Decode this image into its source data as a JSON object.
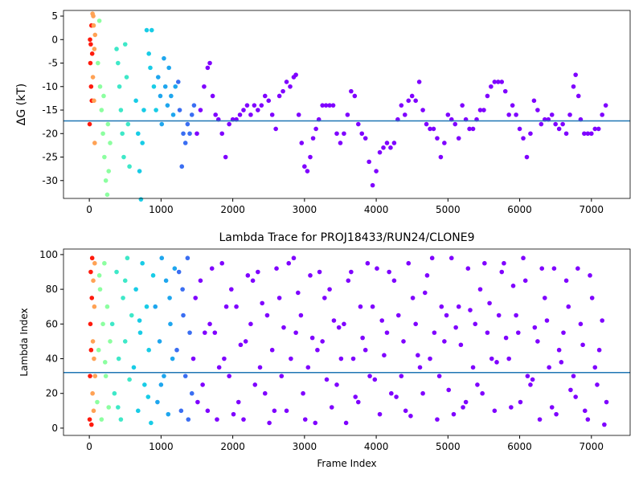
{
  "chart_data": [
    {
      "type": "scatter",
      "ylabel": "ΔG (kT)",
      "xlim": [
        -360,
        7540
      ],
      "ylim": [
        -33.8,
        6.2
      ],
      "xticks": [
        0,
        1000,
        2000,
        3000,
        4000,
        5000,
        6000,
        7000
      ],
      "yticks": [
        -30,
        -25,
        -20,
        -15,
        -10,
        -5,
        0,
        5
      ],
      "hline": {
        "value": -17.3,
        "color": "#1f77b4"
      },
      "series": [
        {
          "color": "#ff1a0d",
          "x": [
            10,
            20,
            30,
            15,
            25,
            35,
            5,
            40
          ],
          "values": [
            0,
            -1,
            3,
            -5,
            -10,
            -13,
            -18,
            -3
          ]
        },
        {
          "color": "#ffa255",
          "x": [
            45,
            55,
            60,
            70,
            50,
            65,
            75,
            80
          ],
          "values": [
            5.5,
            5,
            3,
            -2,
            -8,
            -13,
            -22,
            1
          ]
        },
        {
          "color": "#8cffa0",
          "x": [
            120,
            150,
            170,
            190,
            210,
            230,
            250,
            270,
            290,
            140,
            200,
            260
          ],
          "values": [
            -5,
            -10,
            -15,
            -20,
            -25,
            -30,
            -33,
            -28,
            -22,
            4,
            -12,
            -18
          ]
        },
        {
          "color": "#3ee8c8",
          "x": [
            380,
            400,
            420,
            440,
            460,
            480,
            500,
            520,
            540,
            560
          ],
          "values": [
            -2,
            -5,
            -10,
            -15,
            -20,
            -25,
            -1,
            -8,
            -18,
            -27
          ]
        },
        {
          "color": "#18cce6",
          "x": [
            650,
            680,
            700,
            720,
            740,
            760,
            800,
            830,
            850,
            870,
            900,
            930
          ],
          "values": [
            -13,
            -20,
            -28,
            -34,
            -22,
            -15,
            2,
            -3,
            -6,
            2,
            -10,
            -15
          ]
        },
        {
          "color": "#1ea6ee",
          "x": [
            960,
            990,
            1010,
            1040,
            1060,
            1090,
            1110,
            1140,
            1170,
            1200
          ],
          "values": [
            -8,
            -12,
            -18,
            -4,
            -10,
            -14,
            -6,
            -12,
            -16,
            -10
          ]
        },
        {
          "color": "#3a6ef2",
          "x": [
            1240,
            1260,
            1290,
            1310,
            1340,
            1370,
            1400,
            1430,
            1460
          ],
          "values": [
            -9,
            -15,
            -27,
            -20,
            -22,
            -18,
            -20,
            -16,
            -14
          ]
        },
        {
          "color": "#7f00ff",
          "x": [
            1500,
            1550,
            1600,
            1650,
            1680,
            1720,
            1760,
            1800,
            1850,
            1900,
            1950,
            2000,
            2050,
            2100,
            2150,
            2200,
            2250,
            2300,
            2350,
            2400,
            2450,
            2500,
            2550,
            2600,
            2650,
            2700,
            2750,
            2800,
            2850,
            2880,
            2920,
            2960,
            3000,
            3040,
            3080,
            3120,
            3160,
            3200,
            3250,
            3300,
            3350,
            3400,
            3450,
            3500,
            3550,
            3600,
            3650,
            3700,
            3750,
            3800,
            3850,
            3900,
            3950,
            4000,
            4050,
            4100,
            4150,
            4200,
            4250,
            4300,
            4350,
            4400,
            4450,
            4500,
            4550,
            4600,
            4650,
            4700,
            4750,
            4800,
            4850,
            4900,
            4950,
            5000,
            5050,
            5100,
            5150,
            5200,
            5250,
            5300,
            5350,
            5400,
            5450,
            5500,
            5550,
            5600,
            5650,
            5700,
            5750,
            5800,
            5850,
            5900,
            5950,
            6000,
            6050,
            6100,
            6150,
            6200,
            6250,
            6300,
            6350,
            6400,
            6450,
            6500,
            6550,
            6600,
            6650,
            6700,
            6750,
            6780,
            6820,
            6850,
            6900,
            6950,
            7000,
            7050,
            7100,
            7150,
            7200
          ],
          "values": [
            -20,
            -15,
            -10,
            -6,
            -5,
            -12,
            -16,
            -17,
            -20,
            -25,
            -18,
            -17,
            -17,
            -16,
            -15,
            -14,
            -16,
            -14,
            -15,
            -14,
            -12,
            -13,
            -16,
            -19,
            -12,
            -11,
            -9,
            -10,
            -8,
            -7.5,
            -16,
            -22,
            -27,
            -28,
            -25,
            -21,
            -19,
            -17,
            -14,
            -14,
            -14,
            -14,
            -20,
            -22,
            -20,
            -16,
            -11,
            -12,
            -18,
            -20,
            -21,
            -26,
            -31,
            -28,
            -24,
            -23,
            -22,
            -23,
            -22,
            -17,
            -14,
            -16,
            -13,
            -12,
            -13,
            -9,
            -15,
            -18,
            -19,
            -19,
            -21,
            -25,
            -22,
            -16,
            -17,
            -18,
            -21,
            -14,
            -17,
            -19,
            -19,
            -17,
            -15,
            -15,
            -12,
            -10,
            -9,
            -9,
            -9,
            -11,
            -16,
            -14,
            -16,
            -19,
            -21,
            -25,
            -20,
            -13,
            -15,
            -18,
            -17,
            -17,
            -16,
            -18,
            -19,
            -18,
            -20,
            -16,
            -10,
            -7.5,
            -12,
            -17,
            -20,
            -20,
            -20,
            -19,
            -19,
            -16,
            -14
          ]
        }
      ]
    },
    {
      "type": "scatter",
      "title": "Lambda Trace for PROJ18433/RUN24/CLONE9",
      "xlabel": "Frame Index",
      "ylabel": "Lambda Index",
      "xlim": [
        -360,
        7540
      ],
      "ylim": [
        -4.2,
        103.2
      ],
      "xticks": [
        0,
        1000,
        2000,
        3000,
        4000,
        5000,
        6000,
        7000
      ],
      "yticks": [
        0,
        20,
        40,
        60,
        80,
        100
      ],
      "hline": {
        "value": 32,
        "color": "#1f77b4"
      },
      "series": [
        {
          "color": "#ff1a0d",
          "x": [
            5,
            10,
            15,
            20,
            25,
            30,
            35,
            40
          ],
          "values": [
            5,
            30,
            60,
            90,
            45,
            2,
            75,
            98
          ]
        },
        {
          "color": "#ffa255",
          "x": [
            45,
            50,
            55,
            60,
            65,
            70,
            75,
            80
          ],
          "values": [
            20,
            50,
            85,
            10,
            40,
            70,
            95,
            30
          ]
        },
        {
          "color": "#8cffa0",
          "x": [
            110,
            130,
            150,
            170,
            190,
            210,
            230,
            250,
            270,
            290,
            140,
            220
          ],
          "values": [
            15,
            45,
            80,
            5,
            60,
            95,
            30,
            70,
            12,
            50,
            88,
            38
          ]
        },
        {
          "color": "#3ee8c8",
          "x": [
            320,
            350,
            380,
            410,
            440,
            470,
            500,
            530,
            560,
            590,
            400,
            500
          ],
          "values": [
            60,
            20,
            90,
            40,
            5,
            75,
            50,
            98,
            28,
            65,
            12,
            85
          ]
        },
        {
          "color": "#18cce6",
          "x": [
            620,
            650,
            680,
            710,
            740,
            770,
            800,
            830,
            860,
            890,
            700,
            820
          ],
          "values": [
            35,
            80,
            10,
            55,
            95,
            25,
            70,
            45,
            3,
            88,
            62,
            18
          ]
        },
        {
          "color": "#1ea6ee",
          "x": [
            920,
            950,
            980,
            1010,
            1040,
            1070,
            1100,
            1130,
            1160,
            1190,
            1000,
            1120
          ],
          "values": [
            70,
            15,
            50,
            98,
            30,
            85,
            8,
            60,
            40,
            92,
            25,
            75
          ]
        },
        {
          "color": "#3a6ef2",
          "x": [
            1220,
            1250,
            1280,
            1310,
            1340,
            1370,
            1400,
            1430,
            1300,
            1380
          ],
          "values": [
            45,
            90,
            10,
            65,
            30,
            98,
            55,
            20,
            80,
            5
          ]
        },
        {
          "color": "#7f00ff",
          "x": [
            1450,
            1550,
            1650,
            1750,
            1850,
            1950,
            2050,
            2150,
            2250,
            2350,
            2450,
            2550,
            2650,
            2750,
            2850,
            2950,
            3050,
            3150,
            3250,
            3350,
            3450,
            3550,
            3650,
            3750,
            3850,
            3950,
            4050,
            4150,
            4250,
            4350,
            4450,
            4550,
            4650,
            4750,
            4850,
            4950,
            5050,
            5150,
            5250,
            5350,
            5450,
            5550,
            5650,
            5750,
            5850,
            5950,
            6050,
            6150,
            6250,
            6350,
            6450,
            6550,
            6650,
            6750,
            6850,
            6950,
            7050,
            7150
          ],
          "values": [
            40,
            85,
            10,
            55,
            95,
            30,
            70,
            5,
            60,
            90,
            20,
            45,
            75,
            10,
            98,
            65,
            35,
            3,
            50,
            80,
            25,
            60,
            90,
            15,
            45,
            70,
            8,
            55,
            85,
            30,
            95,
            60,
            20,
            40,
            5,
            50,
            98,
            70,
            15,
            35,
            80,
            55,
            10,
            90,
            40,
            65,
            98,
            25,
            50,
            75,
            12,
            45,
            85,
            30,
            60,
            5,
            35,
            62
          ]
        },
        {
          "color": "#7f00ff",
          "x": [
            1480,
            1580,
            1680,
            1780,
            1880,
            1980,
            2080,
            2180,
            2280,
            2380,
            2480,
            2580,
            2680,
            2780,
            2880,
            2980,
            3080,
            3180,
            3280,
            3380,
            3480,
            3580,
            3680,
            3780,
            3880,
            3980,
            4080,
            4180,
            4280,
            4380,
            4480,
            4580,
            4680,
            4780,
            4880,
            4980,
            5080,
            5180,
            5280,
            5380,
            5480,
            5580,
            5680,
            5780,
            5880,
            5980,
            6080,
            6180,
            6280,
            6380,
            6480,
            6580,
            6680,
            6780,
            6880,
            6980,
            7080,
            7180
          ],
          "values": [
            75,
            25,
            60,
            5,
            40,
            80,
            15,
            50,
            85,
            35,
            65,
            10,
            30,
            95,
            55,
            20,
            88,
            45,
            75,
            12,
            58,
            3,
            40,
            70,
            95,
            28,
            62,
            90,
            18,
            50,
            7,
            42,
            78,
            98,
            30,
            65,
            8,
            48,
            92,
            60,
            20,
            72,
            38,
            95,
            12,
            55,
            85,
            28,
            5,
            62,
            92,
            38,
            70,
            18,
            48,
            88,
            25,
            2
          ]
        },
        {
          "color": "#7f00ff",
          "x": [
            1510,
            1610,
            1710,
            1810,
            1910,
            2010,
            2110,
            2210,
            2310,
            2410,
            2510,
            2610,
            2710,
            2810,
            2910,
            3010,
            3110,
            3210,
            3310,
            3410,
            3510,
            3610,
            3710,
            3810,
            3910,
            4010,
            4110,
            4210,
            4310,
            4410,
            4510,
            4610,
            4710,
            4810,
            4910,
            5010,
            5110,
            5210,
            5310,
            5410,
            5510,
            5610,
            5710,
            5810,
            5910,
            6010,
            6110,
            6210,
            6310,
            6410,
            6510,
            6610,
            6710,
            6810,
            6910,
            7010,
            7110,
            7210
          ],
          "values": [
            15,
            55,
            92,
            35,
            70,
            8,
            48,
            88,
            25,
            72,
            3,
            92,
            58,
            40,
            78,
            5,
            52,
            90,
            28,
            62,
            40,
            85,
            18,
            52,
            30,
            92,
            42,
            20,
            65,
            10,
            75,
            35,
            88,
            55,
            70,
            22,
            58,
            12,
            68,
            25,
            95,
            40,
            65,
            52,
            82,
            15,
            30,
            58,
            92,
            35,
            8,
            55,
            22,
            92,
            10,
            75,
            45,
            15
          ]
        }
      ]
    }
  ]
}
